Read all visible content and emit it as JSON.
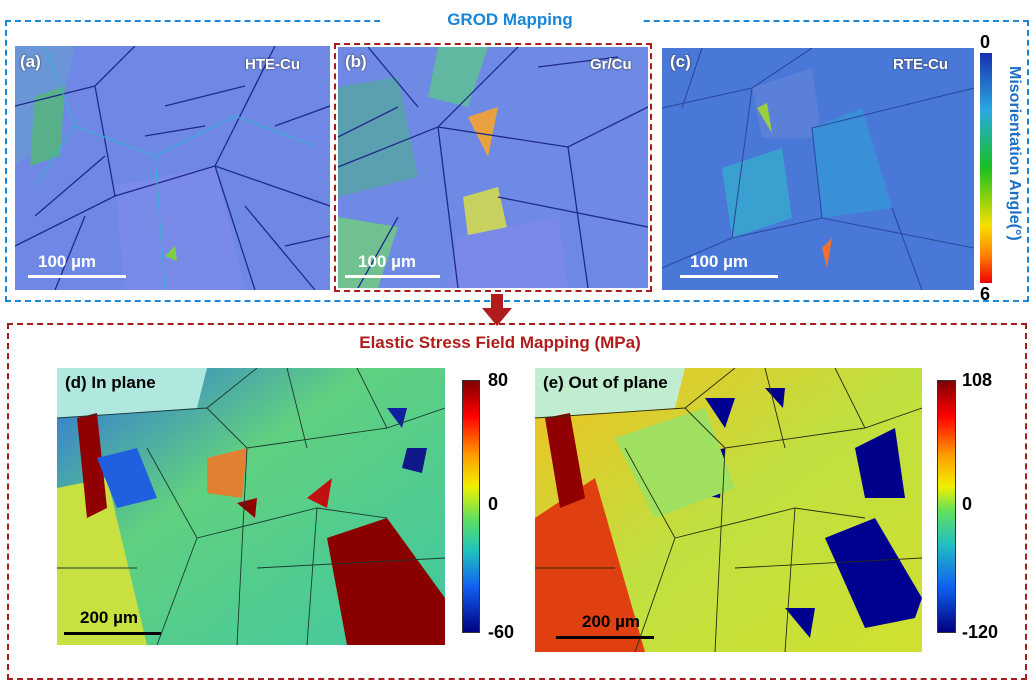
{
  "grod": {
    "title": "GROD Mapping",
    "panels": [
      {
        "label": "(a)",
        "sample": "HTE-Cu",
        "scale": "100 µm"
      },
      {
        "label": "(b)",
        "sample": "Gr/Cu",
        "scale": "100 µm"
      },
      {
        "label": "(c)",
        "sample": "RTE-Cu",
        "scale": "100 µm"
      }
    ],
    "colorbar": {
      "min": "0",
      "max": "6",
      "label": "Misorientation Angle(°)",
      "colors": [
        "#1a2fb0",
        "#2aa8e0",
        "#18c020",
        "#f7e000",
        "#ff8000",
        "#f00000"
      ]
    }
  },
  "stress": {
    "title": "Elastic Stress Field Mapping (MPa)",
    "panels": [
      {
        "label": "(d) In plane",
        "scale": "200 µm",
        "colorbar": {
          "max": "80",
          "mid": "0",
          "min": "-60"
        }
      },
      {
        "label": "(e) Out of plane",
        "scale": "200 µm",
        "colorbar": {
          "max": "108",
          "mid": "0",
          "min": "-120"
        }
      }
    ],
    "colorbar_colors": [
      "#800000",
      "#ff0000",
      "#ffa000",
      "#f0f000",
      "#60e060",
      "#20c0c0",
      "#1060f0",
      "#000080"
    ]
  },
  "colors": {
    "grod_box": "#1a86d8",
    "stress_box": "#a51c1c",
    "title_blue": "#1a86d8",
    "title_red": "#b01c1c"
  }
}
